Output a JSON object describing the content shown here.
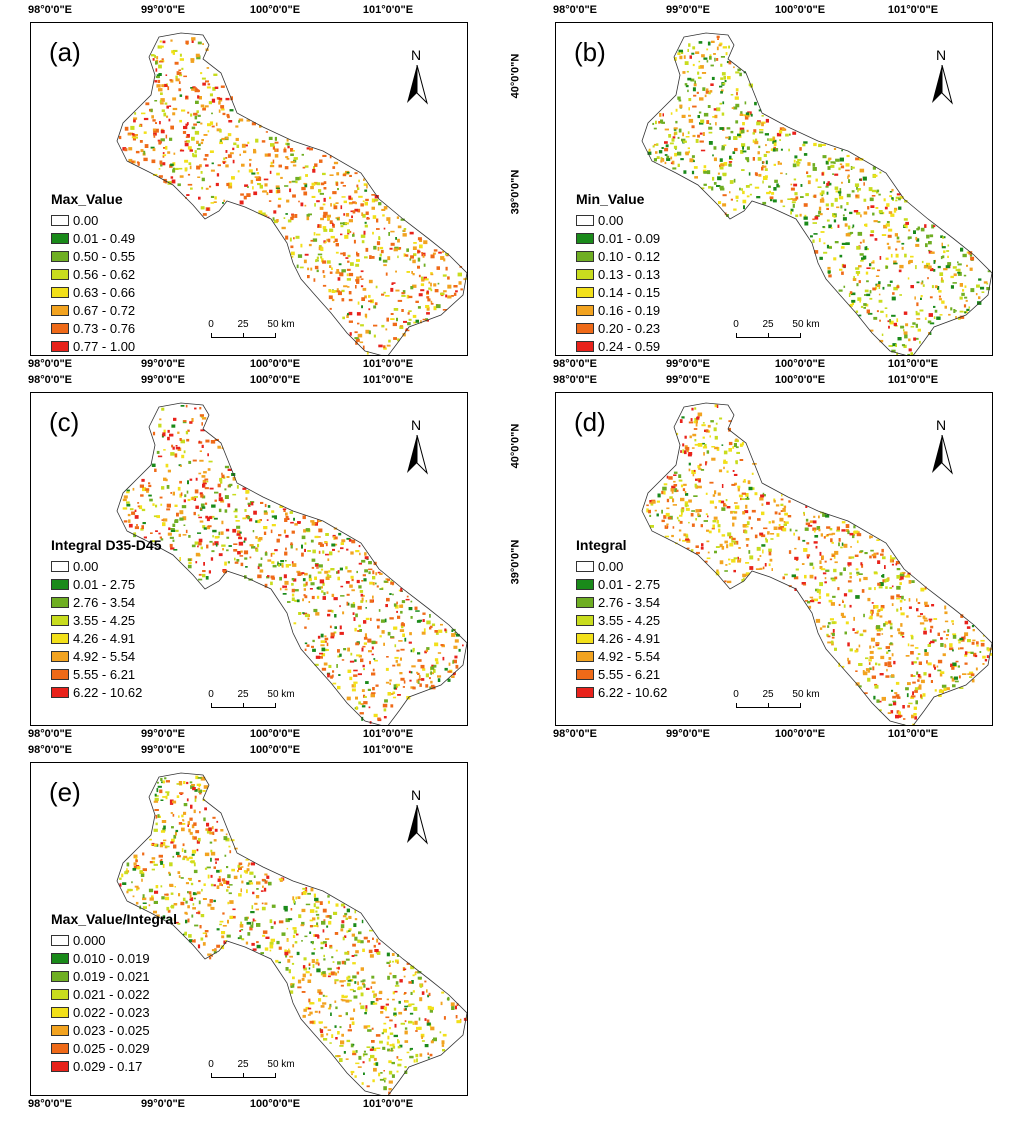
{
  "ticks": {
    "lon": [
      "98°0'0\"E",
      "99°0'0\"E",
      "100°0'0\"E",
      "101°0'0\"E"
    ],
    "lat_top": "40°0'0\"N",
    "lat_bottom": "39°0'0\"N"
  },
  "north_label": "N",
  "scale_bar": {
    "zero": "0",
    "mid": "25",
    "end": "50 km"
  },
  "colors": {
    "zero": "#ffffff",
    "c1": "#1a8a1a",
    "c2": "#6fae23",
    "c3": "#c8dc1e",
    "c4": "#f2e01a",
    "c5": "#f2a320",
    "c6": "#ef6a18",
    "c7": "#e8221b"
  },
  "panels": [
    {
      "label": "(a)",
      "legend_title": "Max_Value",
      "classes": [
        "0.00",
        "0.01 - 0.49",
        "0.50 - 0.55",
        "0.56 - 0.62",
        "0.63 - 0.66",
        "0.67 - 0.72",
        "0.73 - 0.76",
        "0.77 - 1.00"
      ]
    },
    {
      "label": "(b)",
      "legend_title": "Min_Value",
      "classes": [
        "0.00",
        "0.01 - 0.09",
        "0.10 - 0.12",
        "0.13 - 0.13",
        "0.14 - 0.15",
        "0.16 - 0.19",
        "0.20 - 0.23",
        "0.24 - 0.59"
      ]
    },
    {
      "label": "(c)",
      "legend_title": "Integral D35-D45",
      "classes": [
        "0.00",
        "0.01 - 2.75",
        "2.76 - 3.54",
        "3.55 - 4.25",
        "4.26 - 4.91",
        "4.92 - 5.54",
        "5.55 - 6.21",
        "6.22 - 10.62"
      ]
    },
    {
      "label": "(d)",
      "legend_title": "Integral",
      "classes": [
        "0.00",
        "0.01 - 2.75",
        "2.76 - 3.54",
        "3.55 - 4.25",
        "4.26 - 4.91",
        "4.92 - 5.54",
        "5.55 - 6.21",
        "6.22 - 10.62"
      ]
    },
    {
      "label": "(e)",
      "legend_title": "Max_Value/Integral",
      "classes": [
        "0.000",
        "0.010 - 0.019",
        "0.019 - 0.021",
        "0.021 - 0.022",
        "0.022 - 0.023",
        "0.023 - 0.025",
        "0.025 - 0.029",
        "0.029 - 0.17"
      ]
    }
  ]
}
